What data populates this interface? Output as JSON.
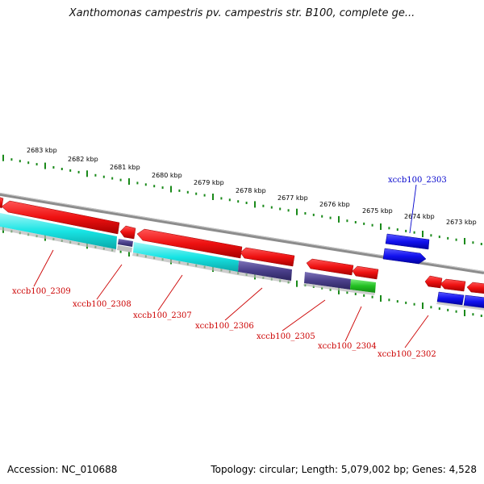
{
  "title": "Xanthomonas campestris pv. campestris str. B100, complete ge...",
  "footer": {
    "accession": "Accession: NC_010688",
    "summary": "Topology: circular; Length: 5,079,002 bp; Genes: 4,528"
  },
  "colors": {
    "backbone": "#8c8c8c",
    "scale_ticks": "#1a8a1a",
    "forward_gene": "#ee1111",
    "cyan_feature": "#18e4e4",
    "purple_feature": "#4a3f8a",
    "green_feature": "#22c022",
    "blue_gene": "#1111ee",
    "label_red": "#cc0000",
    "label_blue": "#0000cc"
  },
  "scale_labels": [
    {
      "text": "2683 kbp",
      "kbp": 2683
    },
    {
      "text": "2682 kbp",
      "kbp": 2682
    },
    {
      "text": "2681 kbp",
      "kbp": 2681
    },
    {
      "text": "2680 kbp",
      "kbp": 2680
    },
    {
      "text": "2679 kbp",
      "kbp": 2679
    },
    {
      "text": "2678 kbp",
      "kbp": 2678
    },
    {
      "text": "2677 kbp",
      "kbp": 2677
    },
    {
      "text": "2676 kbp",
      "kbp": 2676
    },
    {
      "text": "2675 kbp",
      "kbp": 2675
    },
    {
      "text": "2674 kbp",
      "kbp": 2674
    },
    {
      "text": "2673 kbp",
      "kbp": 2673
    }
  ],
  "gene_labels": [
    {
      "text": "xccb100_2309",
      "color": "red"
    },
    {
      "text": "xccb100_2308",
      "color": "red"
    },
    {
      "text": "xccb100_2307",
      "color": "red"
    },
    {
      "text": "xccb100_2306",
      "color": "red"
    },
    {
      "text": "xccb100_2305",
      "color": "red"
    },
    {
      "text": "xccb100_2304",
      "color": "red"
    },
    {
      "text": "xccb100_2302",
      "color": "red"
    },
    {
      "text": "xccb100_2303",
      "color": "blue"
    }
  ]
}
